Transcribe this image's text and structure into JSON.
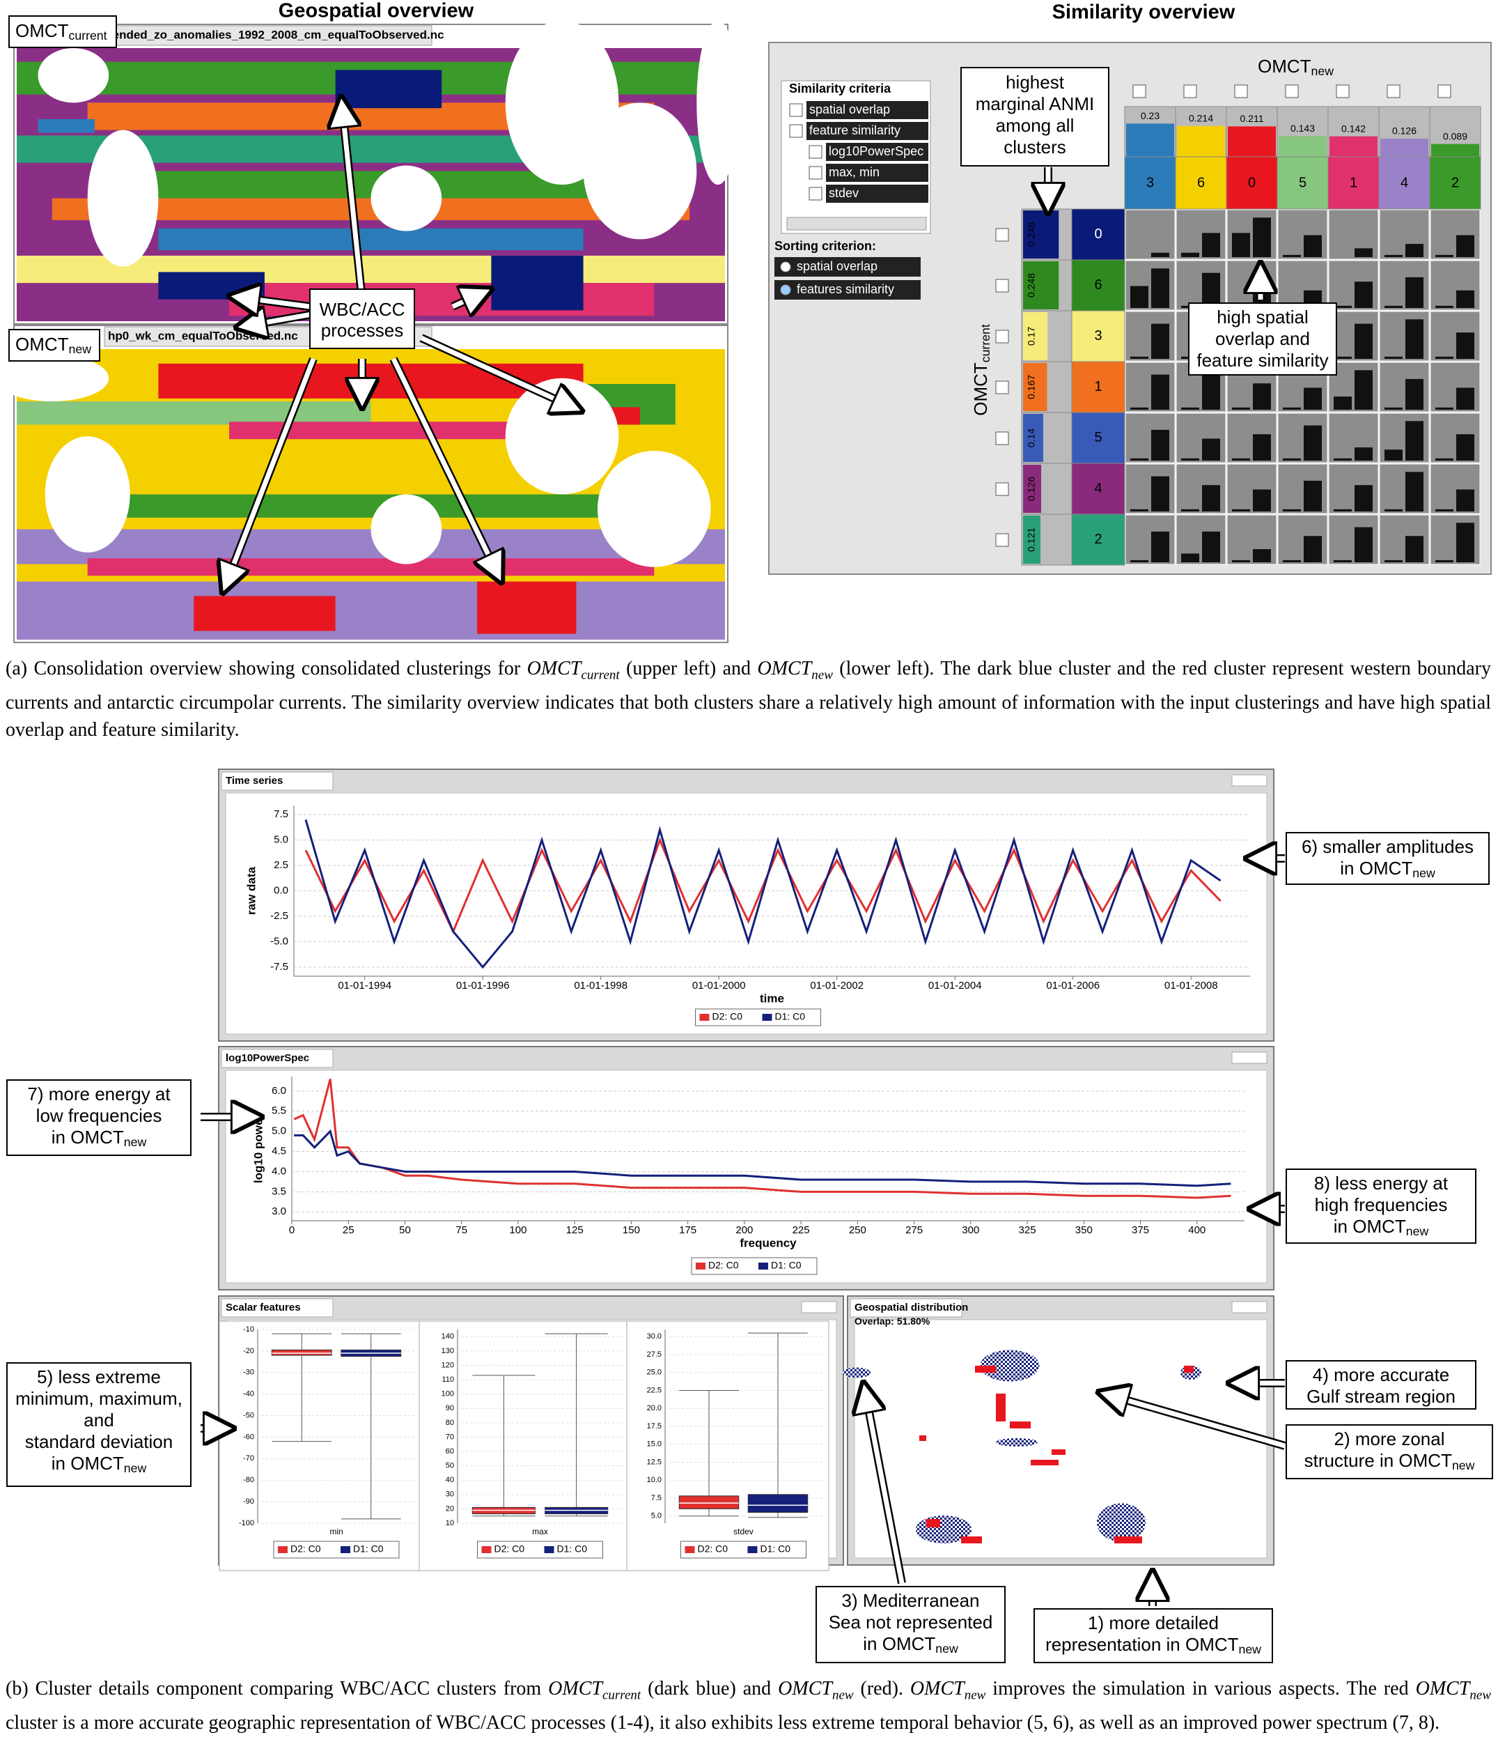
{
  "geospatial_overview": {
    "title": "Geospatial overview",
    "maps": [
      {
        "label": "OMCT",
        "sub": "current",
        "filename": "rended_zo_anomalies_1992_2008_cm_equalToObserved.nc"
      },
      {
        "label": "OMCT",
        "sub": "new",
        "filename": "hp0_wk_cm_equalToObserved.nc"
      }
    ],
    "callout": [
      "WBC/ACC",
      "processes"
    ]
  },
  "similarity_overview": {
    "title": "Similarity overview",
    "criteria_title": "Similarity criteria",
    "criteria": [
      "spatial overlap",
      "feature similarity",
      "log10PowerSpec",
      "max, min",
      "stdev"
    ],
    "sorting_title": "Sorting criterion:",
    "sorting": [
      "spatial overlap",
      "features similarity"
    ],
    "col_label": {
      "label": "OMCT",
      "sub": "new"
    },
    "row_label": {
      "label": "OMCT",
      "sub": "current"
    },
    "columns": [
      {
        "id": "3",
        "anmi": 0.23,
        "color": "#2b7bb9"
      },
      {
        "id": "6",
        "anmi": 0.214,
        "color": "#f5d000"
      },
      {
        "id": "0",
        "anmi": 0.211,
        "color": "#e8171f"
      },
      {
        "id": "5",
        "anmi": 0.143,
        "color": "#87c67f"
      },
      {
        "id": "1",
        "anmi": 0.142,
        "color": "#e0306e"
      },
      {
        "id": "4",
        "anmi": 0.126,
        "color": "#9a82c8"
      },
      {
        "id": "2",
        "anmi": 0.089,
        "color": "#3a9a2a"
      }
    ],
    "rows": [
      {
        "id": "0",
        "anmi": 0.248,
        "color": "#0a1a78"
      },
      {
        "id": "6",
        "anmi": 0.248,
        "color": "#2e8a1e"
      },
      {
        "id": "3",
        "anmi": 0.17,
        "color": "#f5ec7a"
      },
      {
        "id": "1",
        "anmi": 0.167,
        "color": "#f07020"
      },
      {
        "id": "5",
        "anmi": 0.14,
        "color": "#3a5ab8"
      },
      {
        "id": "4",
        "anmi": 0.126,
        "color": "#8a2a7a"
      },
      {
        "id": "2",
        "anmi": 0.121,
        "color": "#2aa07a"
      }
    ],
    "cells": [
      [
        [
          0,
          0.1
        ],
        [
          0.1,
          0.55
        ],
        [
          0.55,
          0.9
        ],
        [
          0.05,
          0.5
        ],
        [
          0,
          0.2
        ],
        [
          0.05,
          0.3
        ],
        [
          0.05,
          0.5
        ]
      ],
      [
        [
          0.5,
          0.9
        ],
        [
          0.05,
          0.8
        ],
        [
          0.05,
          0.5
        ],
        [
          0.05,
          0.4
        ],
        [
          0.05,
          0.6
        ],
        [
          0.05,
          0.7
        ],
        [
          0.05,
          0.4
        ]
      ],
      [
        [
          0.05,
          0.8
        ],
        [
          0.05,
          0.9
        ],
        [
          0.05,
          0.7
        ],
        [
          0.05,
          0.5
        ],
        [
          0.05,
          0.8
        ],
        [
          0.05,
          0.9
        ],
        [
          0.05,
          0.6
        ]
      ],
      [
        [
          0.05,
          0.8
        ],
        [
          0.05,
          0.9
        ],
        [
          0.05,
          0.6
        ],
        [
          0.05,
          0.5
        ],
        [
          0.3,
          0.9
        ],
        [
          0.05,
          0.7
        ],
        [
          0.05,
          0.5
        ]
      ],
      [
        [
          0.05,
          0.7
        ],
        [
          0.05,
          0.5
        ],
        [
          0.05,
          0.6
        ],
        [
          0.05,
          0.8
        ],
        [
          0.05,
          0.3
        ],
        [
          0.25,
          0.9
        ],
        [
          0.05,
          0.6
        ]
      ],
      [
        [
          0.05,
          0.8
        ],
        [
          0.05,
          0.6
        ],
        [
          0.05,
          0.5
        ],
        [
          0.05,
          0.7
        ],
        [
          0.05,
          0.6
        ],
        [
          0.05,
          0.9
        ],
        [
          0.05,
          0.5
        ]
      ],
      [
        [
          0.05,
          0.7
        ],
        [
          0.2,
          0.7
        ],
        [
          0.05,
          0.3
        ],
        [
          0.05,
          0.6
        ],
        [
          0.05,
          0.8
        ],
        [
          0.05,
          0.6
        ],
        [
          0.05,
          0.9
        ]
      ]
    ],
    "callouts": [
      [
        "highest",
        "marginal ANMI",
        "among all",
        "clusters"
      ],
      [
        "high spatial",
        "overlap and",
        "feature similarity"
      ]
    ]
  },
  "caption_a": [
    "(a) Consolidation overview showing consolidated clusterings for ",
    {
      "name": "OMCT",
      "sub": "current"
    },
    " (upper left) and ",
    {
      "name": "OMCT",
      "sub": "new"
    },
    " (lower left). The dark blue cluster and the red cluster represent western boundary currents and antarctic circumpolar currents. The similarity overview indicates that both clusters share a relatively high amount of information with the input clusterings and have high spatial overlap and feature similarity."
  ],
  "chart_data": [
    {
      "type": "line",
      "panel_title": "Time series",
      "xlabel": "time",
      "ylabel": "raw data",
      "x": [
        1993,
        1993.5,
        1994,
        1994.5,
        1995,
        1995.5,
        1996,
        1996.5,
        1997,
        1997.5,
        1998,
        1998.5,
        1999,
        1999.5,
        2000,
        2000.5,
        2001,
        2001.5,
        2002,
        2002.5,
        2003,
        2003.5,
        2004,
        2004.5,
        2005,
        2005.5,
        2006,
        2006.5,
        2007,
        2007.5,
        2008,
        2008.5
      ],
      "xlim": [
        1992.8,
        2009.0
      ],
      "xticks": [
        {
          "value": 1994,
          "label": "01-01-1994"
        },
        {
          "value": 1996,
          "label": "01-01-1996"
        },
        {
          "value": 1998,
          "label": "01-01-1998"
        },
        {
          "value": 2000,
          "label": "01-01-2000"
        },
        {
          "value": 2002,
          "label": "01-01-2002"
        },
        {
          "value": 2004,
          "label": "01-01-2004"
        },
        {
          "value": 2006,
          "label": "01-01-2006"
        },
        {
          "value": 2008,
          "label": "01-01-2008"
        }
      ],
      "ylim": [
        -8.4,
        8.4
      ],
      "yticks": [
        7.5,
        {
          "value": 5,
          "label": "5.0"
        },
        2.5,
        {
          "value": 0,
          "label": "0.0"
        },
        -2.5,
        {
          "value": -5,
          "label": "-5.0"
        },
        -7.5
      ],
      "grid": true,
      "series": [
        {
          "name": "D2: C0",
          "color": "#e03030",
          "values": [
            4,
            -2,
            3,
            -3,
            2,
            -4,
            3,
            -3,
            4,
            -2,
            3,
            -3,
            5,
            -2,
            3,
            -3,
            4,
            -2,
            3,
            -2,
            4,
            -3,
            3,
            -2,
            4,
            -3,
            3,
            -2,
            3,
            -3,
            2,
            -1
          ]
        },
        {
          "name": "D1: C0",
          "color": "#14207a",
          "values": [
            7,
            -3,
            4,
            -5,
            3,
            -4,
            -7.5,
            -4,
            5,
            -4,
            4,
            -5,
            6,
            -4,
            4,
            -5,
            5,
            -4,
            4,
            -4,
            5,
            -5,
            4,
            -4,
            5,
            -5,
            4,
            -4,
            4,
            -5,
            3,
            1
          ]
        }
      ]
    },
    {
      "type": "line",
      "panel_title": "log10PowerSpec",
      "xlabel": "frequency",
      "ylabel": "log10 power",
      "x": [
        1,
        5,
        10,
        17,
        20,
        25,
        30,
        40,
        50,
        60,
        75,
        100,
        125,
        150,
        175,
        200,
        225,
        250,
        275,
        300,
        325,
        350,
        375,
        400,
        415
      ],
      "xlim": [
        0,
        421
      ],
      "xticks": [
        0,
        25,
        50,
        75,
        100,
        125,
        150,
        175,
        200,
        225,
        250,
        275,
        300,
        325,
        350,
        375,
        400
      ],
      "ylim": [
        2.78,
        6.36
      ],
      "yticks": [
        {
          "value": 3,
          "label": "3.0"
        },
        3.5,
        {
          "value": 4,
          "label": "4.0"
        },
        4.5,
        {
          "value": 5,
          "label": "5.0"
        },
        5.5,
        {
          "value": 6,
          "label": "6.0"
        }
      ],
      "grid": true,
      "series": [
        {
          "name": "D2: C0",
          "color": "#e03030",
          "values": [
            5.3,
            5.4,
            4.8,
            6.3,
            4.6,
            4.6,
            4.2,
            4.1,
            3.9,
            3.9,
            3.8,
            3.7,
            3.7,
            3.6,
            3.6,
            3.6,
            3.5,
            3.5,
            3.5,
            3.45,
            3.45,
            3.4,
            3.4,
            3.35,
            3.4
          ]
        },
        {
          "name": "D1: C0",
          "color": "#14207a",
          "values": [
            4.9,
            4.9,
            4.6,
            5.0,
            4.4,
            4.5,
            4.2,
            4.1,
            4.0,
            4.0,
            4.0,
            4.0,
            4.0,
            3.9,
            3.9,
            3.9,
            3.8,
            3.8,
            3.8,
            3.75,
            3.75,
            3.7,
            3.7,
            3.65,
            3.7
          ]
        }
      ]
    },
    {
      "type": "box",
      "panel_title": "Scalar features",
      "grid": true,
      "plots": [
        {
          "label": "min",
          "ylim": [
            -100,
            -10
          ],
          "yticks": [
            -10,
            -20,
            -30,
            -40,
            -50,
            -60,
            -70,
            -80,
            -90,
            -100
          ],
          "boxes": [
            {
              "name": "D2: C0",
              "color": "#e03030",
              "whisker_low": -62,
              "q1": -22,
              "median": -21,
              "q3": -19.5,
              "whisker_high": -12
            },
            {
              "name": "D1: C0",
              "color": "#14207a",
              "whisker_low": -98,
              "q1": -22.5,
              "median": -21,
              "q3": -19.5,
              "whisker_high": -12
            }
          ]
        },
        {
          "label": "max",
          "ylim": [
            10,
            145
          ],
          "yticks": [
            10,
            20,
            30,
            40,
            50,
            60,
            70,
            80,
            90,
            100,
            110,
            120,
            130,
            140
          ],
          "boxes": [
            {
              "name": "D2: C0",
              "color": "#e03030",
              "whisker_low": 15,
              "q1": 16.5,
              "median": 19,
              "q3": 21,
              "whisker_high": 113
            },
            {
              "name": "D1: C0",
              "color": "#14207a",
              "whisker_low": 15,
              "q1": 16.5,
              "median": 19,
              "q3": 21,
              "whisker_high": 142
            }
          ]
        },
        {
          "label": "stdev",
          "ylim": [
            4,
            31
          ],
          "yticks": [
            {
              "value": 5,
              "label": "5.0"
            },
            7.5,
            {
              "value": 10,
              "label": "10.0"
            },
            12.5,
            {
              "value": 15,
              "label": "15.0"
            },
            17.5,
            {
              "value": 20,
              "label": "20.0"
            },
            22.5,
            {
              "value": 25,
              "label": "25.0"
            },
            27.5,
            {
              "value": 30,
              "label": "30.0"
            }
          ],
          "boxes": [
            {
              "name": "D2: C0",
              "color": "#e03030",
              "whisker_low": 5,
              "q1": 6,
              "median": 6.8,
              "q3": 7.8,
              "whisker_high": 22.5
            },
            {
              "name": "D1: C0",
              "color": "#14207a",
              "whisker_low": 4.8,
              "q1": 5.5,
              "median": 6.5,
              "q3": 8,
              "whisker_high": 30.5
            }
          ]
        }
      ]
    },
    {
      "type": "map",
      "panel_title": "Geospatial distribution",
      "overlap_label": "Overlap:",
      "overlap": 51.8,
      "overlap_text": "51.80%"
    }
  ],
  "annotations": [
    {
      "lines": [
        "6) smaller amplitudes",
        "in OMCT"
      ],
      "sub": "new"
    },
    {
      "lines": [
        "7) more energy at",
        "low frequencies",
        "in OMCT"
      ],
      "sub": "new"
    },
    {
      "lines": [
        "8) less energy at",
        "high frequencies",
        "in OMCT"
      ],
      "sub": "new"
    },
    {
      "lines": [
        "5) less extreme",
        "minimum, maximum,",
        "and",
        "standard deviation",
        "in OMCT"
      ],
      "sub": "new"
    },
    {
      "lines": [
        "4) more accurate",
        "Gulf stream region"
      ]
    },
    {
      "lines": [
        "2) more zonal",
        "structure in OMCT"
      ],
      "sub": "new"
    },
    {
      "lines": [
        "3) Mediterranean",
        "Sea not represented",
        "in OMCT"
      ],
      "sub": "new"
    },
    {
      "lines": [
        "1) more detailed",
        "representation in OMCT"
      ],
      "sub": "new"
    }
  ],
  "caption_b": [
    "(b) Cluster details component comparing WBC/ACC clusters from ",
    {
      "name": "OMCT",
      "sub": "current"
    },
    " (dark blue) and ",
    {
      "name": "OMCT",
      "sub": "new"
    },
    " (red). ",
    {
      "name": "OMCT",
      "sub": "new"
    },
    " improves the simulation in various aspects. The red ",
    {
      "name": "OMCT",
      "sub": "new"
    },
    " cluster is a more accurate geographic representation of WBC/ACC processes (1-4), it also exhibits less extreme temporal behavior (5, 6), as well as an improved power spectrum (7, 8)."
  ]
}
